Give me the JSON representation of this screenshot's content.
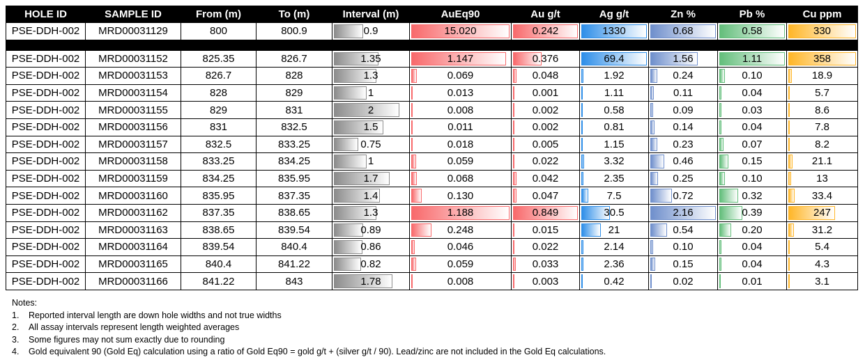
{
  "table": {
    "header": [
      "HOLE ID",
      "SAMPLE ID",
      "From (m)",
      "To (m)",
      "Interval (m)",
      "AuEq90",
      "Au g/t",
      "Ag g/t",
      "Zn %",
      "Pb %",
      "Cu ppm"
    ],
    "sections": [
      {
        "rows": [
          [
            "PSE-DDH-002",
            "MRD00031129",
            "800",
            "800.9",
            "0.9",
            "15.020",
            "0.242",
            "1330",
            "0.68",
            "0.58",
            "330"
          ]
        ]
      },
      {
        "rows": [
          [
            "PSE-DDH-002",
            "MRD00031152",
            "825.35",
            "826.7",
            "1.35",
            "1.147",
            "0.376",
            "69.4",
            "1.56",
            "1.11",
            "358"
          ],
          [
            "PSE-DDH-002",
            "MRD00031153",
            "826.7",
            "828",
            "1.3",
            "0.069",
            "0.048",
            "1.92",
            "0.24",
            "0.10",
            "18.9"
          ],
          [
            "PSE-DDH-002",
            "MRD00031154",
            "828",
            "829",
            "1",
            "0.013",
            "0.001",
            "1.11",
            "0.11",
            "0.04",
            "5.7"
          ],
          [
            "PSE-DDH-002",
            "MRD00031155",
            "829",
            "831",
            "2",
            "0.008",
            "0.002",
            "0.58",
            "0.09",
            "0.03",
            "8.6"
          ],
          [
            "PSE-DDH-002",
            "MRD00031156",
            "831",
            "832.5",
            "1.5",
            "0.011",
            "0.002",
            "0.81",
            "0.14",
            "0.04",
            "7.8"
          ],
          [
            "PSE-DDH-002",
            "MRD00031157",
            "832.5",
            "833.25",
            "0.75",
            "0.018",
            "0.005",
            "1.15",
            "0.23",
            "0.07",
            "8.2"
          ],
          [
            "PSE-DDH-002",
            "MRD00031158",
            "833.25",
            "834.25",
            "1",
            "0.059",
            "0.022",
            "3.32",
            "0.46",
            "0.15",
            "21.1"
          ],
          [
            "PSE-DDH-002",
            "MRD00031159",
            "834.25",
            "835.95",
            "1.7",
            "0.068",
            "0.042",
            "2.35",
            "0.25",
            "0.10",
            "13"
          ],
          [
            "PSE-DDH-002",
            "MRD00031160",
            "835.95",
            "837.35",
            "1.4",
            "0.130",
            "0.047",
            "7.5",
            "0.72",
            "0.32",
            "33.4"
          ],
          [
            "PSE-DDH-002",
            "MRD00031162",
            "837.35",
            "838.65",
            "1.3",
            "1.188",
            "0.849",
            "30.5",
            "2.16",
            "0.39",
            "247"
          ],
          [
            "PSE-DDH-002",
            "MRD00031163",
            "838.65",
            "839.54",
            "0.89",
            "0.248",
            "0.015",
            "21",
            "0.54",
            "0.20",
            "31.2"
          ],
          [
            "PSE-DDH-002",
            "MRD00031164",
            "839.54",
            "840.4",
            "0.86",
            "0.046",
            "0.022",
            "2.14",
            "0.10",
            "0.04",
            "5.4"
          ],
          [
            "PSE-DDH-002",
            "MRD00031165",
            "840.4",
            "841.22",
            "0.82",
            "0.059",
            "0.033",
            "2.36",
            "0.15",
            "0.04",
            "4.3"
          ],
          [
            "PSE-DDH-002",
            "MRD00031166",
            "841.22",
            "843",
            "1.78",
            "0.008",
            "0.003",
            "0.42",
            "0.02",
            "0.01",
            "3.1"
          ]
        ]
      }
    ]
  },
  "notes": {
    "title": "Notes:",
    "items": [
      {
        "number": "1.",
        "text": "Reported interval length are down hole widths and not true widths"
      },
      {
        "number": "2.",
        "text": "All assay intervals represent length weighted averages"
      },
      {
        "number": "3.",
        "text": "Some figures may not sum exactly due to rounding"
      },
      {
        "number": "4.",
        "text": "Gold equivalent 90 (Gold Eq) calculation using a ratio of Gold Eq90 = gold g/t + (silver g/t / 90). Lead/zinc are not included in the Gold Eq calculations."
      }
    ]
  }
}
